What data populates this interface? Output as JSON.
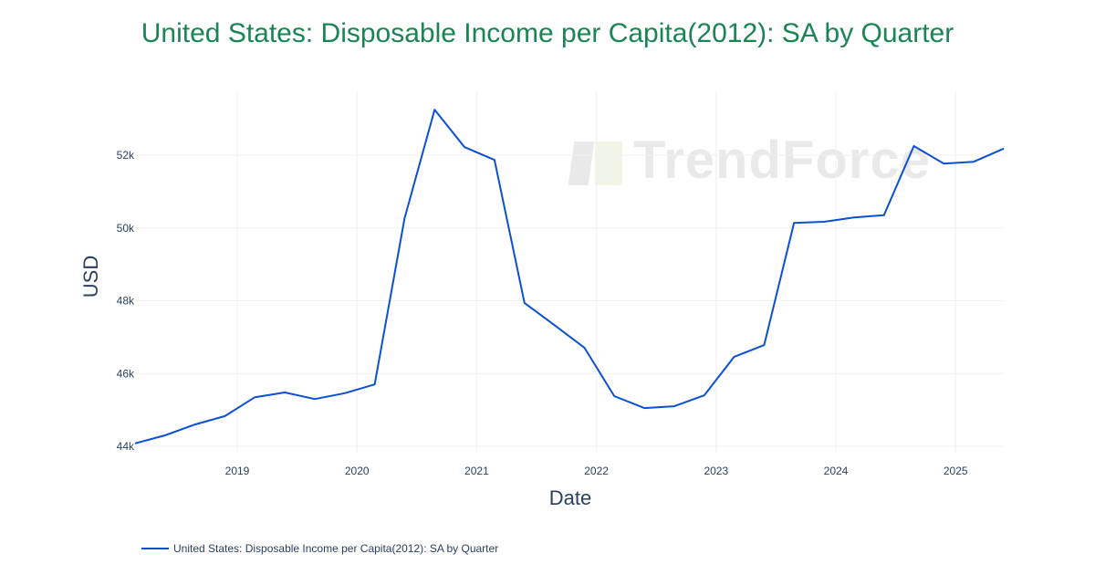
{
  "title": "United States: Disposable Income per Capita(2012): SA by Quarter",
  "watermark": "TrendForce",
  "legend": {
    "label": "United States: Disposable Income per Capita(2012): SA by Quarter"
  },
  "colors": {
    "title": "#1a8553",
    "line": "#0a50d2",
    "grid": "#f0f0f0",
    "text": "#2a3f5f"
  },
  "chart_data": {
    "type": "line",
    "title": "United States: Disposable Income per Capita(2012): SA by Quarter",
    "xlabel": "Date",
    "ylabel": "USD",
    "ylim": [
      43950,
      53500
    ],
    "xlim": [
      "2018-04",
      "2025-06"
    ],
    "grid": true,
    "legend_position": "bottom-left",
    "x_ticks": [
      "2019",
      "2020",
      "2021",
      "2022",
      "2023",
      "2024",
      "2025"
    ],
    "y_ticks": [
      "44k",
      "46k",
      "48k",
      "50k",
      "52k"
    ],
    "x": [
      "2018Q2",
      "2018Q3",
      "2018Q4",
      "2019Q1",
      "2019Q2",
      "2019Q3",
      "2019Q4",
      "2020Q1",
      "2020Q2",
      "2020Q3",
      "2020Q4",
      "2021Q1",
      "2021Q2",
      "2021Q3",
      "2021Q4",
      "2022Q1",
      "2022Q2",
      "2022Q3",
      "2022Q4",
      "2023Q1",
      "2023Q2",
      "2023Q3",
      "2023Q4",
      "2024Q1",
      "2024Q2",
      "2024Q3",
      "2024Q4",
      "2025Q1",
      "2025Q2",
      "2025Q3"
    ],
    "series": [
      {
        "name": "United States: Disposable Income per Capita(2012): SA by Quarter",
        "values": [
          44080,
          44300,
          44600,
          44830,
          45350,
          45480,
          45300,
          45460,
          45700,
          50270,
          53250,
          52220,
          51870,
          47940,
          47330,
          46710,
          45380,
          45050,
          45100,
          45400,
          46460,
          46780,
          50140,
          50170,
          50290,
          50350,
          52250,
          51770,
          51820,
          52180
        ]
      }
    ]
  }
}
